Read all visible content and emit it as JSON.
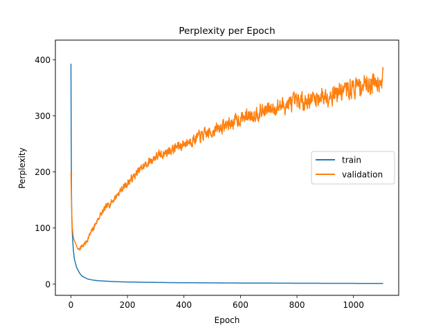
{
  "chart_data": {
    "type": "line",
    "title": "Perplexity per Epoch",
    "xlabel": "Epoch",
    "ylabel": "Perplexity",
    "xlim": [
      -55,
      1160
    ],
    "ylim": [
      -20,
      435
    ],
    "xticks": [
      0,
      200,
      400,
      600,
      800,
      1000
    ],
    "yticks": [
      0,
      100,
      200,
      300,
      400
    ],
    "grid": false,
    "legend_position": "center-right",
    "series": [
      {
        "name": "train",
        "color": "#1f77b4",
        "points": [
          [
            0,
            393
          ],
          [
            1,
            250
          ],
          [
            2,
            160
          ],
          [
            3,
            120
          ],
          [
            5,
            90
          ],
          [
            8,
            65
          ],
          [
            12,
            45
          ],
          [
            20,
            30
          ],
          [
            30,
            20
          ],
          [
            40,
            14
          ],
          [
            60,
            9
          ],
          [
            80,
            7
          ],
          [
            100,
            6
          ],
          [
            150,
            4.5
          ],
          [
            200,
            3.8
          ],
          [
            300,
            3
          ],
          [
            400,
            2.5
          ],
          [
            500,
            2.2
          ],
          [
            600,
            2
          ],
          [
            700,
            1.8
          ],
          [
            800,
            1.6
          ],
          [
            900,
            1.5
          ],
          [
            1000,
            1.4
          ],
          [
            1105,
            1.3
          ]
        ]
      },
      {
        "name": "validation",
        "color": "#ff7f0e",
        "noise_seed": 7,
        "points": [
          [
            0,
            200
          ],
          [
            2,
            140
          ],
          [
            5,
            100
          ],
          [
            10,
            80
          ],
          [
            20,
            68
          ],
          [
            25,
            62
          ],
          [
            30,
            64
          ],
          [
            50,
            72
          ],
          [
            75,
            95
          ],
          [
            100,
            120
          ],
          [
            125,
            137
          ],
          [
            150,
            150
          ],
          [
            175,
            167
          ],
          [
            200,
            180
          ],
          [
            225,
            193
          ],
          [
            250,
            207
          ],
          [
            275,
            217
          ],
          [
            300,
            227
          ],
          [
            325,
            232
          ],
          [
            350,
            238
          ],
          [
            375,
            244
          ],
          [
            400,
            250
          ],
          [
            425,
            256
          ],
          [
            450,
            262
          ],
          [
            475,
            266
          ],
          [
            500,
            272
          ],
          [
            525,
            278
          ],
          [
            550,
            284
          ],
          [
            575,
            289
          ],
          [
            600,
            295
          ],
          [
            625,
            300
          ],
          [
            650,
            304
          ],
          [
            675,
            308
          ],
          [
            700,
            311
          ],
          [
            725,
            315
          ],
          [
            750,
            318
          ],
          [
            775,
            321
          ],
          [
            800,
            324
          ],
          [
            825,
            327
          ],
          [
            850,
            330
          ],
          [
            875,
            333
          ],
          [
            900,
            336
          ],
          [
            925,
            340
          ],
          [
            950,
            343
          ],
          [
            975,
            346
          ],
          [
            1000,
            350
          ],
          [
            1025,
            354
          ],
          [
            1050,
            358
          ],
          [
            1075,
            362
          ],
          [
            1105,
            368
          ]
        ]
      }
    ]
  }
}
